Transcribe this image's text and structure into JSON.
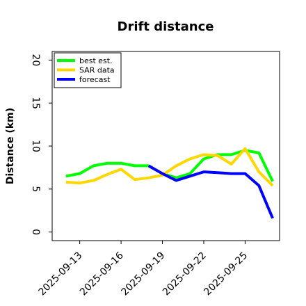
{
  "chart_data": {
    "type": "line",
    "title": "Drift distance",
    "xlabel": "",
    "ylabel": "Distance (km)",
    "ylim": [
      -1,
      21
    ],
    "yticks": [
      0,
      5,
      10,
      15,
      20
    ],
    "xlim": [
      "2025-09-11",
      "2025-09-27.5"
    ],
    "xticks": [
      "2025-09-13",
      "2025-09-16",
      "2025-09-19",
      "2025-09-22",
      "2025-09-25"
    ],
    "grid": false,
    "legend_position": "top-left",
    "series": [
      {
        "name": "best est.",
        "color": "#00ff00",
        "x": [
          "2025-09-12",
          "2025-09-13",
          "2025-09-14",
          "2025-09-15",
          "2025-09-16",
          "2025-09-17",
          "2025-09-18",
          "2025-09-19",
          "2025-09-20",
          "2025-09-21",
          "2025-09-22",
          "2025-09-23",
          "2025-09-24",
          "2025-09-25",
          "2025-09-26",
          "2025-09-27"
        ],
        "values": [
          6.5,
          6.8,
          7.7,
          8.0,
          8.0,
          7.7,
          7.7,
          6.8,
          6.3,
          6.8,
          8.5,
          9.0,
          9.0,
          9.5,
          9.2,
          5.9
        ]
      },
      {
        "name": "SAR data",
        "color": "#ffd700",
        "x": [
          "2025-09-12",
          "2025-09-13",
          "2025-09-14",
          "2025-09-15",
          "2025-09-16",
          "2025-09-17",
          "2025-09-18",
          "2025-09-19",
          "2025-09-20",
          "2025-09-21",
          "2025-09-22",
          "2025-09-23",
          "2025-09-24",
          "2025-09-25",
          "2025-09-26",
          "2025-09-27"
        ],
        "values": [
          5.8,
          5.7,
          6.0,
          6.7,
          7.3,
          6.1,
          6.3,
          6.6,
          7.7,
          8.5,
          9.0,
          8.9,
          7.9,
          9.7,
          7.0,
          5.4
        ]
      },
      {
        "name": "forecast",
        "color": "#0000ff",
        "x": [
          "2025-09-18",
          "2025-09-19",
          "2025-09-20",
          "2025-09-21",
          "2025-09-22",
          "2025-09-23",
          "2025-09-24",
          "2025-09-25",
          "2025-09-26",
          "2025-09-27"
        ],
        "values": [
          7.7,
          6.8,
          6.0,
          6.5,
          7.0,
          6.9,
          6.8,
          6.8,
          5.4,
          1.6
        ]
      }
    ]
  }
}
